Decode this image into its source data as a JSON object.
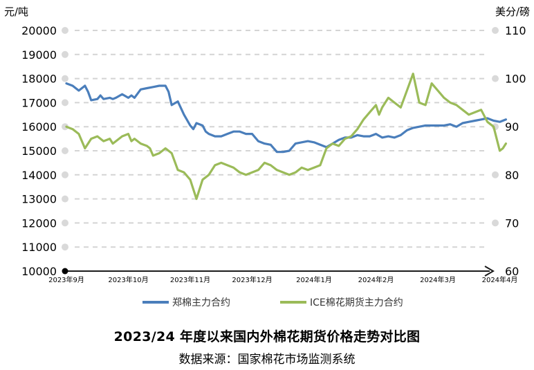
{
  "chart_data": {
    "type": "line",
    "title": "2023/24 年度以来国内外棉花期货价格走势对比图",
    "source": "数据来源：国家棉花市场监测系统",
    "y_left_label": "元/吨",
    "y_right_label": "美分/磅",
    "ylim_left": [
      10000,
      20000
    ],
    "ylim_right": [
      60,
      110
    ],
    "y_left_ticks": [
      "20000",
      "19000",
      "18000",
      "17000",
      "16000",
      "15000",
      "14000",
      "13000",
      "12000",
      "11000",
      "10000"
    ],
    "y_right_ticks": [
      "110",
      "100",
      "90",
      "80",
      "70",
      "60"
    ],
    "x_ticks": [
      "2023年9月",
      "2023年10月",
      "2023年11月",
      "2023年12月",
      "2024年1月",
      "2024年2月",
      "2024年3月",
      "2024年4月"
    ],
    "grid": true,
    "legend_position": "bottom",
    "series": [
      {
        "name": "郑棉主力合约",
        "axis": "left",
        "color": "#4a7ebb",
        "x": [
          0,
          0.1,
          0.2,
          0.3,
          0.35,
          0.4,
          0.5,
          0.55,
          0.6,
          0.7,
          0.75,
          0.8,
          0.9,
          1.0,
          1.05,
          1.1,
          1.2,
          1.3,
          1.4,
          1.5,
          1.6,
          1.65,
          1.7,
          1.8,
          1.9,
          2.0,
          2.05,
          2.1,
          2.2,
          2.25,
          2.3,
          2.4,
          2.5,
          2.6,
          2.7,
          2.8,
          2.9,
          3.0,
          3.1,
          3.2,
          3.3,
          3.4,
          3.5,
          3.6,
          3.7,
          3.8,
          3.9,
          4.0,
          4.1,
          4.2,
          4.3,
          4.4,
          4.5,
          4.6,
          4.7,
          4.8,
          4.9,
          5.0,
          5.1,
          5.2,
          5.3,
          5.4,
          5.5,
          5.6,
          5.7,
          5.8,
          5.9,
          6.0,
          6.1,
          6.2,
          6.3,
          6.4,
          6.5,
          6.6,
          6.7,
          6.8,
          6.9,
          7.0,
          7.1
        ],
        "values": [
          17800,
          17700,
          17500,
          17700,
          17450,
          17100,
          17150,
          17300,
          17150,
          17200,
          17150,
          17200,
          17350,
          17200,
          17300,
          17200,
          17550,
          17600,
          17650,
          17700,
          17700,
          17450,
          16900,
          17050,
          16500,
          16050,
          15900,
          16150,
          16050,
          15800,
          15700,
          15600,
          15600,
          15700,
          15800,
          15800,
          15700,
          15700,
          15400,
          15300,
          15250,
          14950,
          14950,
          15000,
          15300,
          15350,
          15400,
          15350,
          15250,
          15150,
          15300,
          15450,
          15550,
          15550,
          15650,
          15600,
          15600,
          15700,
          15550,
          15600,
          15550,
          15650,
          15850,
          15950,
          16000,
          16050,
          16050,
          16050,
          16050,
          16100,
          16000,
          16150,
          16200,
          16250,
          16300,
          16350,
          16250,
          16200,
          16300
        ]
      },
      {
        "name": "ICE棉花期货主力合约",
        "axis": "right",
        "color": "#9bbb59",
        "x": [
          0,
          0.1,
          0.2,
          0.3,
          0.35,
          0.4,
          0.5,
          0.55,
          0.6,
          0.7,
          0.75,
          0.8,
          0.9,
          1.0,
          1.05,
          1.1,
          1.2,
          1.3,
          1.35,
          1.4,
          1.5,
          1.6,
          1.7,
          1.8,
          1.9,
          2.0,
          2.1,
          2.2,
          2.3,
          2.4,
          2.5,
          2.6,
          2.7,
          2.8,
          2.9,
          3.0,
          3.1,
          3.2,
          3.3,
          3.4,
          3.5,
          3.6,
          3.7,
          3.8,
          3.9,
          4.0,
          4.1,
          4.2,
          4.3,
          4.4,
          4.5,
          4.6,
          4.7,
          4.8,
          4.9,
          5.0,
          5.05,
          5.1,
          5.2,
          5.3,
          5.4,
          5.5,
          5.6,
          5.7,
          5.8,
          5.9,
          6.0,
          6.1,
          6.2,
          6.3,
          6.4,
          6.5,
          6.6,
          6.7,
          6.8,
          6.9,
          7.0,
          7.05,
          7.1
        ],
        "values": [
          90,
          89.5,
          88.5,
          85.5,
          86.5,
          87.5,
          88,
          87.5,
          87,
          87.5,
          86.5,
          87,
          88,
          88.5,
          87,
          87.5,
          86.5,
          86,
          85.5,
          84,
          84.5,
          85.5,
          84.5,
          81,
          80.5,
          79,
          75,
          79,
          80,
          82,
          82.5,
          82,
          81.5,
          80.5,
          80,
          80.5,
          81,
          82.5,
          82,
          81,
          80.5,
          80,
          80.5,
          81.5,
          81,
          81.5,
          82,
          85.5,
          86.5,
          86,
          87.5,
          88,
          89.5,
          91.5,
          93,
          94.5,
          92.5,
          94,
          96,
          95,
          94,
          97.5,
          101,
          95,
          94.5,
          99,
          97.5,
          96,
          95,
          94.5,
          93.5,
          92.5,
          93,
          93.5,
          91,
          90,
          85,
          85.5,
          86.5
        ]
      }
    ]
  }
}
